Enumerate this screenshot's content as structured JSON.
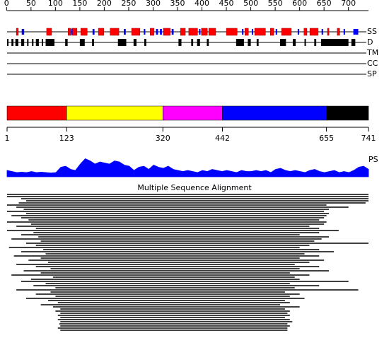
{
  "ruler": {
    "ticks": [
      0,
      50,
      100,
      150,
      200,
      250,
      300,
      350,
      400,
      450,
      500,
      550,
      600,
      650,
      700
    ]
  },
  "tracks": {
    "labels": [
      "SS",
      "D",
      "TM",
      "CC",
      "SP"
    ]
  },
  "ss": {
    "helix_color": "#ff0000",
    "strand_color": "#0000ff",
    "helices": [
      [
        20,
        24
      ],
      [
        82,
        92
      ],
      [
        126,
        131
      ],
      [
        133,
        144
      ],
      [
        152,
        165
      ],
      [
        188,
        199
      ],
      [
        212,
        230
      ],
      [
        256,
        273
      ],
      [
        294,
        302
      ],
      [
        321,
        335
      ],
      [
        356,
        366
      ],
      [
        373,
        391
      ],
      [
        399,
        411
      ],
      [
        414,
        428
      ],
      [
        450,
        472
      ],
      [
        488,
        495
      ],
      [
        508,
        530
      ],
      [
        540,
        547
      ],
      [
        563,
        583
      ],
      [
        609,
        615
      ],
      [
        621,
        638
      ],
      [
        657,
        660
      ],
      [
        677,
        682
      ]
    ],
    "strands": [
      [
        31,
        36
      ],
      [
        132,
        135
      ],
      [
        176,
        180
      ],
      [
        240,
        244
      ],
      [
        281,
        284
      ],
      [
        306,
        310
      ],
      [
        314,
        318
      ],
      [
        338,
        342
      ],
      [
        394,
        397
      ],
      [
        482,
        485
      ],
      [
        502,
        505
      ],
      [
        551,
        554
      ],
      [
        596,
        599
      ],
      [
        645,
        648
      ],
      [
        690,
        693
      ],
      [
        710,
        720
      ]
    ]
  },
  "disorder": [
    [
      1,
      3
    ],
    [
      10,
      14
    ],
    [
      18,
      24
    ],
    [
      30,
      36
    ],
    [
      42,
      44
    ],
    [
      52,
      55
    ],
    [
      60,
      66
    ],
    [
      72,
      74
    ],
    [
      80,
      98
    ],
    [
      120,
      125
    ],
    [
      150,
      160
    ],
    [
      175,
      179
    ],
    [
      228,
      245
    ],
    [
      260,
      266
    ],
    [
      282,
      286
    ],
    [
      352,
      358
    ],
    [
      378,
      382
    ],
    [
      390,
      396
    ],
    [
      410,
      414
    ],
    [
      470,
      486
    ],
    [
      494,
      500
    ],
    [
      512,
      516
    ],
    [
      560,
      572
    ],
    [
      586,
      592
    ],
    [
      610,
      612
    ],
    [
      630,
      634
    ],
    [
      644,
      700
    ],
    [
      706,
      714
    ]
  ],
  "domains": {
    "boundaries": [
      1,
      123,
      320,
      442,
      655,
      741
    ],
    "colors": [
      "#ff0000",
      "#ffff00",
      "#ff00ff",
      "#0000ff",
      "#000000"
    ]
  },
  "ps": {
    "label": "PS",
    "color": "#0000ff",
    "values": [
      0.3,
      0.25,
      0.2,
      0.22,
      0.2,
      0.25,
      0.2,
      0.22,
      0.2,
      0.18,
      0.2,
      0.45,
      0.5,
      0.35,
      0.3,
      0.6,
      0.85,
      0.75,
      0.6,
      0.7,
      0.65,
      0.6,
      0.75,
      0.7,
      0.55,
      0.5,
      0.3,
      0.45,
      0.5,
      0.35,
      0.55,
      0.45,
      0.4,
      0.5,
      0.35,
      0.3,
      0.25,
      0.3,
      0.25,
      0.2,
      0.3,
      0.25,
      0.35,
      0.3,
      0.25,
      0.3,
      0.25,
      0.2,
      0.3,
      0.25,
      0.25,
      0.3,
      0.25,
      0.3,
      0.2,
      0.35,
      0.4,
      0.3,
      0.25,
      0.3,
      0.25,
      0.2,
      0.3,
      0.35,
      0.25,
      0.2,
      0.25,
      0.3,
      0.2,
      0.25,
      0.2,
      0.3,
      0.45,
      0.5,
      0.35
    ]
  },
  "msa": {
    "title": "Multiple Sequence Alignment",
    "hits": [
      [
        1,
        741
      ],
      [
        1,
        741
      ],
      [
        30,
        741
      ],
      [
        40,
        741
      ],
      [
        25,
        735
      ],
      [
        1,
        655
      ],
      [
        20,
        700
      ],
      [
        35,
        660
      ],
      [
        1,
        650
      ],
      [
        40,
        660
      ],
      [
        10,
        655
      ],
      [
        30,
        650
      ],
      [
        45,
        640
      ],
      [
        1,
        655
      ],
      [
        50,
        650
      ],
      [
        20,
        620
      ],
      [
        60,
        640
      ],
      [
        1,
        680
      ],
      [
        55,
        640
      ],
      [
        30,
        600
      ],
      [
        65,
        660
      ],
      [
        10,
        645
      ],
      [
        70,
        630
      ],
      [
        40,
        741
      ],
      [
        60,
        620
      ],
      [
        5,
        600
      ],
      [
        75,
        640
      ],
      [
        30,
        670
      ],
      [
        80,
        610
      ],
      [
        15,
        640
      ],
      [
        70,
        600
      ],
      [
        45,
        650
      ],
      [
        85,
        620
      ],
      [
        20,
        590
      ],
      [
        60,
        640
      ],
      [
        90,
        600
      ],
      [
        35,
        660
      ],
      [
        70,
        580
      ],
      [
        10,
        620
      ],
      [
        95,
        590
      ],
      [
        50,
        600
      ],
      [
        30,
        700
      ],
      [
        80,
        580
      ],
      [
        55,
        640
      ],
      [
        100,
        590
      ],
      [
        20,
        720
      ],
      [
        90,
        570
      ],
      [
        60,
        600
      ],
      [
        100,
        580
      ],
      [
        40,
        610
      ],
      [
        85,
        570
      ],
      [
        105,
        580
      ],
      [
        70,
        560
      ],
      [
        95,
        600
      ],
      [
        110,
        570
      ],
      [
        100,
        580
      ],
      [
        110,
        575
      ],
      [
        105,
        580
      ],
      [
        110,
        570
      ],
      [
        105,
        580
      ],
      [
        110,
        585
      ],
      [
        108,
        575
      ],
      [
        110,
        580
      ],
      [
        105,
        575
      ],
      [
        110,
        575
      ]
    ]
  }
}
